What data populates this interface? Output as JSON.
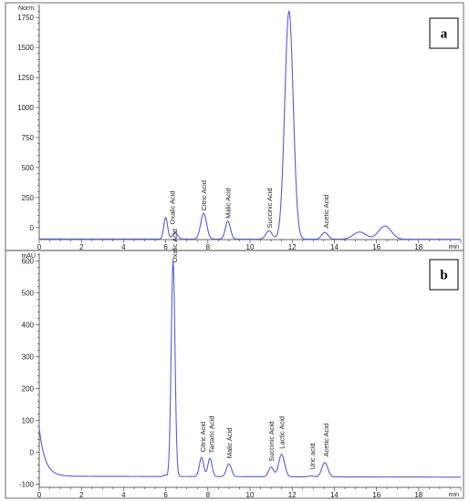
{
  "chart_data": [
    {
      "type": "line",
      "panel_label": "a",
      "ylabel": "Norm.",
      "xlabel": "min",
      "xlim": [
        0,
        20
      ],
      "ylim": [
        -100,
        1850
      ],
      "x_ticks": [
        0,
        2,
        4,
        6,
        8,
        10,
        12,
        14,
        16,
        18
      ],
      "y_ticks": [
        0,
        250,
        500,
        750,
        1000,
        1250,
        1500,
        1750
      ],
      "grid": false,
      "color": "#5b5bd6",
      "baseline": {
        "start": -95,
        "end": -98
      },
      "peaks": [
        {
          "rt": 6.0,
          "height": 85,
          "width": 0.09
        },
        {
          "rt": 6.45,
          "height": -40,
          "width": 0.12
        },
        {
          "rt": 7.8,
          "height": 120,
          "width": 0.14
        },
        {
          "rt": 8.95,
          "height": 55,
          "width": 0.12
        },
        {
          "rt": 10.9,
          "height": -25,
          "width": 0.15
        },
        {
          "rt": 11.85,
          "height": 1805,
          "width": 0.2
        },
        {
          "rt": 13.55,
          "height": -38,
          "width": 0.15
        },
        {
          "rt": 15.2,
          "height": -35,
          "width": 0.3
        },
        {
          "rt": 16.4,
          "height": 15,
          "width": 0.3
        }
      ],
      "annotations": [
        {
          "text": "Oxalic Acid",
          "x": 6.3,
          "y": 10
        },
        {
          "text": "Citric Acid",
          "x": 7.8,
          "y": 125
        },
        {
          "text": "Malic Acid",
          "x": 8.95,
          "y": 60
        },
        {
          "text": "Succinic Acid",
          "x": 10.9,
          "y": -20
        },
        {
          "text": "Acetic Acid",
          "x": 13.6,
          "y": -20
        }
      ]
    },
    {
      "type": "line",
      "panel_label": "b",
      "ylabel": "mAU",
      "xlabel": "min",
      "xlim": [
        0,
        20
      ],
      "ylim": [
        -110,
        625
      ],
      "x_ticks": [
        0,
        2,
        4,
        6,
        8,
        10,
        12,
        14,
        16,
        18
      ],
      "y_ticks": [
        -100,
        0,
        100,
        200,
        300,
        400,
        500,
        600
      ],
      "grid": false,
      "color": "#5b5bd6",
      "baseline": {
        "start": -75,
        "end": -78
      },
      "initial_decay": {
        "start": 75,
        "tau": 0.28
      },
      "peaks": [
        {
          "rt": 5.95,
          "height": -70,
          "width": 0.06
        },
        {
          "rt": 6.35,
          "height": 600,
          "width": 0.09
        },
        {
          "rt": 7.7,
          "height": -15,
          "width": 0.1
        },
        {
          "rt": 8.1,
          "height": -18,
          "width": 0.1
        },
        {
          "rt": 9.0,
          "height": -35,
          "width": 0.12
        },
        {
          "rt": 11.0,
          "height": -45,
          "width": 0.12
        },
        {
          "rt": 11.5,
          "height": -5,
          "width": 0.14
        },
        {
          "rt": 12.9,
          "height": -72,
          "width": 0.12
        },
        {
          "rt": 13.55,
          "height": -30,
          "width": 0.14
        }
      ],
      "annotations": [
        {
          "text": "Oxalic Acid",
          "x": 6.4,
          "y": 590
        },
        {
          "text": "Citric Acid",
          "x": 7.75,
          "y": -5
        },
        {
          "text": "Tartaric Acid",
          "x": 8.15,
          "y": -8
        },
        {
          "text": "Malic Acid",
          "x": 9.0,
          "y": -25
        },
        {
          "text": "Succinic Acid",
          "x": 11.0,
          "y": -35
        },
        {
          "text": "Lactic Acid",
          "x": 11.5,
          "y": 5
        },
        {
          "text": "Uric acid",
          "x": 12.95,
          "y": -60
        },
        {
          "text": "Acetic Acid",
          "x": 13.6,
          "y": -20
        }
      ]
    }
  ]
}
